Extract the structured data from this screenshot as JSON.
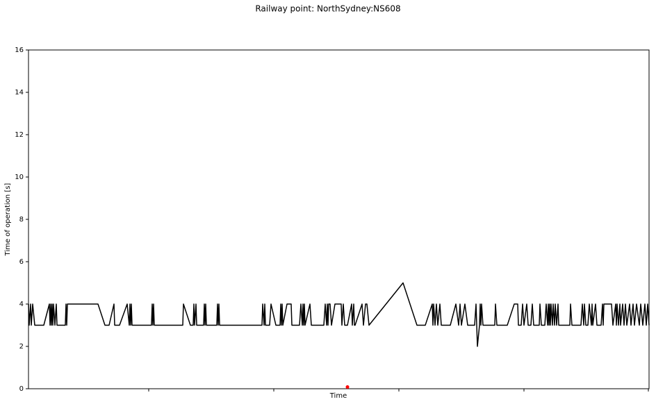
{
  "chart_data": {
    "type": "line",
    "title": "Railway point: NorthSydney:NS608",
    "x_label": "Time",
    "y_label": "Time of operation [s]",
    "xlim": [
      41,
      934
    ],
    "ylim": [
      0,
      16
    ],
    "yticks": [
      0,
      2,
      4,
      6,
      8,
      10,
      12,
      14,
      16
    ],
    "grid": false,
    "series": [
      {
        "color": "#000000",
        "x": [
          41,
          42,
          44,
          45,
          47,
          50,
          63,
          71,
          72,
          73,
          74,
          75,
          76,
          77,
          79,
          81,
          82,
          94,
          95,
          96,
          97,
          141,
          151,
          157,
          164,
          165,
          172,
          183,
          186,
          187,
          188,
          189,
          190,
          218,
          219,
          220,
          221,
          222,
          263,
          264,
          274,
          278,
          279,
          280,
          282,
          283,
          293,
          294,
          295,
          296,
          297,
          312,
          313,
          314,
          315,
          316,
          377,
          378,
          380,
          381,
          382,
          388,
          390,
          397,
          403,
          404,
          405,
          406,
          407,
          413,
          419,
          420,
          431,
          433,
          435,
          436,
          437,
          438,
          439,
          446,
          448,
          466,
          468,
          470,
          471,
          472,
          473,
          475,
          477,
          482,
          491,
          492,
          494,
          496,
          500,
          506,
          507,
          509,
          510,
          511,
          521,
          523,
          526,
          528,
          531,
          580,
          600,
          612,
          622,
          623,
          624,
          626,
          628,
          630,
          633,
          635,
          648,
          656,
          660,
          662,
          664,
          669,
          673,
          683,
          685,
          686,
          687,
          690,
          691,
          692,
          693,
          695,
          712,
          713,
          715,
          720,
          730,
          740,
          745,
          746,
          750,
          752,
          754,
          758,
          760,
          764,
          766,
          768,
          776,
          777,
          779,
          784,
          786,
          788,
          789,
          790,
          791,
          792,
          793,
          795,
          796,
          798,
          799,
          801,
          803,
          804,
          820,
          821,
          823,
          836,
          838,
          840,
          841,
          843,
          846,
          848,
          851,
          852,
          853,
          857,
          859,
          865,
          867,
          868,
          869,
          880,
          882,
          886,
          887,
          888,
          890,
          892,
          893,
          896,
          898,
          900,
          902,
          906,
          908,
          911,
          913,
          916,
          920,
          922,
          925,
          928,
          930,
          932,
          934
        ],
        "values": [
          4,
          3,
          4,
          3,
          4,
          3,
          3,
          4,
          3,
          4,
          3,
          4,
          3,
          4,
          3,
          4,
          3,
          3,
          4,
          3,
          4,
          4,
          3,
          3,
          4,
          3,
          3,
          4,
          3,
          4,
          3,
          4,
          3,
          3,
          4,
          3,
          4,
          3,
          3,
          4,
          3,
          3,
          4,
          3,
          4,
          3,
          3,
          4,
          3,
          4,
          3,
          3,
          4,
          3,
          4,
          3,
          3,
          4,
          3,
          4,
          3,
          3,
          4,
          3,
          3,
          4,
          3,
          4,
          3,
          4,
          4,
          3,
          3,
          4,
          3,
          4,
          3,
          4,
          3,
          4,
          3,
          3,
          4,
          3,
          4,
          3,
          4,
          4,
          3,
          4,
          4,
          3,
          4,
          3,
          3,
          4,
          3,
          4,
          3,
          3,
          4,
          3,
          4,
          4,
          3,
          5,
          3,
          3,
          4,
          3,
          4,
          3,
          4,
          3,
          4,
          3,
          3,
          4,
          3,
          4,
          3,
          4,
          3,
          3,
          4,
          3,
          2,
          3,
          4,
          3,
          4,
          3,
          3,
          4,
          3,
          3,
          3,
          4,
          4,
          3,
          3,
          4,
          3,
          4,
          3,
          3,
          4,
          3,
          3,
          4,
          3,
          3,
          4,
          3,
          4,
          3,
          4,
          3,
          4,
          3,
          4,
          3,
          4,
          3,
          4,
          3,
          3,
          4,
          3,
          3,
          4,
          3,
          4,
          3,
          3,
          4,
          3,
          4,
          3,
          4,
          3,
          3,
          4,
          3,
          4,
          4,
          3,
          4,
          3,
          4,
          3,
          4,
          3,
          4,
          3,
          4,
          3,
          4,
          3,
          4,
          3,
          4,
          3,
          4,
          3,
          4,
          3,
          4,
          3
        ]
      },
      {
        "type": "scatter",
        "color": "#ff0000",
        "x": [
          500
        ],
        "values": [
          0.08
        ]
      }
    ]
  }
}
